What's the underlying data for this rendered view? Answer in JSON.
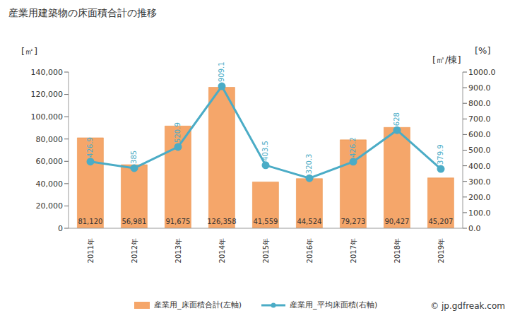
{
  "chart_data": {
    "type": "bar",
    "title": "産業用建築物の床面積合計の推移",
    "ylabel": "[㎡]",
    "y2label": "[㎡/棟]",
    "annotations": [
      "[%]",
      "© jp.gdfreak.com"
    ],
    "categories": [
      "2011年",
      "2012年",
      "2013年",
      "2014年",
      "2015年",
      "2016年",
      "2017年",
      "2018年",
      "2019年"
    ],
    "series": [
      {
        "name": "産業用_床面積合計(左軸)",
        "type": "bar",
        "color": "#f5a66a",
        "values": [
          81120,
          56981,
          91675,
          126358,
          41559,
          44524,
          79273,
          90427,
          45207
        ],
        "value_labels": [
          "81,120",
          "56,981",
          "91,675",
          "126,358",
          "41,559",
          "44,524",
          "79,273",
          "90,427",
          "45,207"
        ]
      },
      {
        "name": "産業用_平均床面積(右軸)",
        "type": "line",
        "axis": "y2",
        "color": "#4bacc6",
        "marker": "circle",
        "values": [
          426.9,
          385,
          520.9,
          909.1,
          403.5,
          320.3,
          426.2,
          628,
          379.9
        ]
      }
    ],
    "ylim": [
      0,
      140000
    ],
    "yticks": [
      0,
      {
        "value": 20000,
        "label": "20,000"
      },
      {
        "value": 40000,
        "label": "40,000"
      },
      {
        "value": 60000,
        "label": "60,000"
      },
      {
        "value": 80000,
        "label": "80,000"
      },
      {
        "value": 100000,
        "label": "100,000"
      },
      {
        "value": 120000,
        "label": "120,000"
      },
      {
        "value": 140000,
        "label": "140,000"
      }
    ],
    "y2lim": [
      0,
      1000
    ],
    "y2ticks": [
      {
        "value": 0,
        "label": "0.0"
      },
      {
        "value": 100,
        "label": "100.0"
      },
      {
        "value": 200,
        "label": "200.0"
      },
      {
        "value": 300,
        "label": "300.0"
      },
      {
        "value": 400,
        "label": "400.0"
      },
      {
        "value": 500,
        "label": "500.0"
      },
      {
        "value": 600,
        "label": "600.0"
      },
      {
        "value": 700,
        "label": "700.0"
      },
      {
        "value": 800,
        "label": "800.0"
      },
      {
        "value": 900,
        "label": "900.0"
      },
      {
        "value": 1000,
        "label": "1000.0"
      }
    ],
    "grid": false,
    "data_labels": true
  }
}
